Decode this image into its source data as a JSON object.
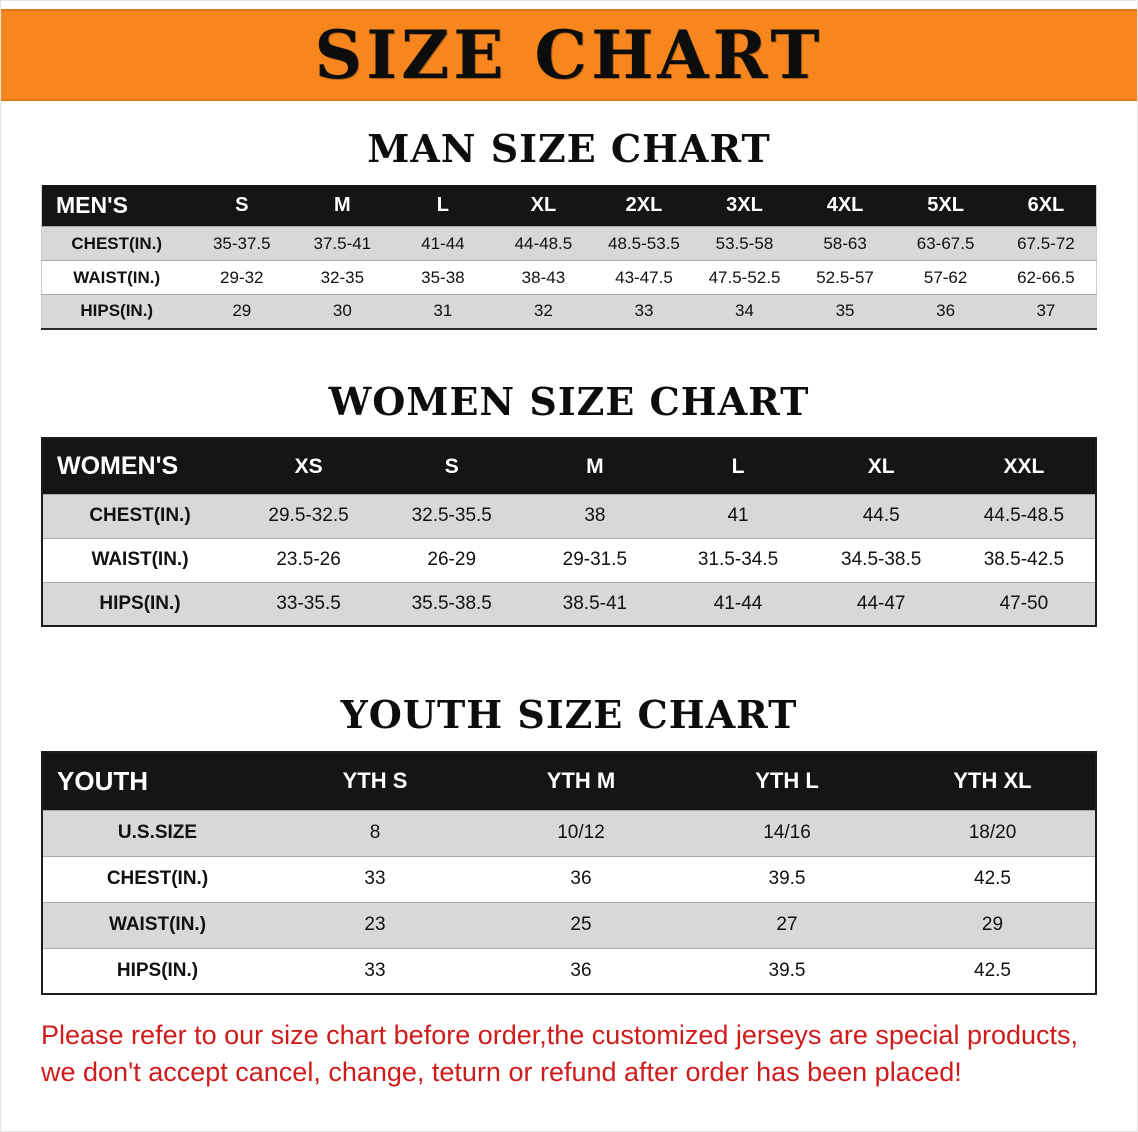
{
  "banner": {
    "title": "SIZE CHART"
  },
  "sections": [
    {
      "heading": "MAN SIZE CHART",
      "table": {
        "header": [
          "MEN'S",
          "S",
          "M",
          "L",
          "XL",
          "2XL",
          "3XL",
          "4XL",
          "5XL",
          "6XL"
        ],
        "rows": [
          [
            "CHEST(IN.)",
            "35-37.5",
            "37.5-41",
            "41-44",
            "44-48.5",
            "48.5-53.5",
            "53.5-58",
            "58-63",
            "63-67.5",
            "67.5-72"
          ],
          [
            "WAIST(IN.)",
            "29-32",
            "32-35",
            "35-38",
            "38-43",
            "43-47.5",
            "47.5-52.5",
            "52.5-57",
            "57-62",
            "62-66.5"
          ],
          [
            "HIPS(IN.)",
            "29",
            "30",
            "31",
            "32",
            "33",
            "34",
            "35",
            "36",
            "37"
          ]
        ]
      }
    },
    {
      "heading": "WOMEN SIZE CHART",
      "table": {
        "header": [
          "WOMEN'S",
          "XS",
          "S",
          "M",
          "L",
          "XL",
          "XXL"
        ],
        "rows": [
          [
            "CHEST(IN.)",
            "29.5-32.5",
            "32.5-35.5",
            "38",
            "41",
            "44.5",
            "44.5-48.5"
          ],
          [
            "WAIST(IN.)",
            "23.5-26",
            "26-29",
            "29-31.5",
            "31.5-34.5",
            "34.5-38.5",
            "38.5-42.5"
          ],
          [
            "HIPS(IN.)",
            "33-35.5",
            "35.5-38.5",
            "38.5-41",
            "41-44",
            "44-47",
            "47-50"
          ]
        ]
      }
    },
    {
      "heading": "YOUTH SIZE CHART",
      "table": {
        "header": [
          "YOUTH",
          "YTH S",
          "YTH M",
          "YTH L",
          "YTH XL"
        ],
        "rows": [
          [
            "U.S.SIZE",
            "8",
            "10/12",
            "14/16",
            "18/20"
          ],
          [
            "CHEST(IN.)",
            "33",
            "36",
            "39.5",
            "42.5"
          ],
          [
            "WAIST(IN.)",
            "23",
            "25",
            "27",
            "29"
          ],
          [
            "HIPS(IN.)",
            "33",
            "36",
            "39.5",
            "42.5"
          ]
        ]
      }
    }
  ],
  "footer": {
    "line1": "Please refer to our size chart before order,the customized jerseys are special products,",
    "line2": "we don't accept cancel, change, teturn or refund after order has been placed!"
  },
  "colors": {
    "banner_bg": "#f6861d",
    "table_header_bg": "#151515",
    "row_alt_bg": "#d8d8d8",
    "notice_text": "#d01b1b"
  }
}
